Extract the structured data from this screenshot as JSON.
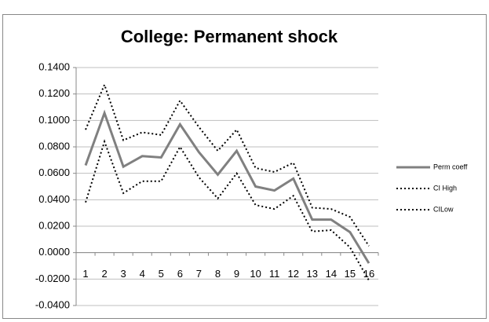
{
  "chart_data": {
    "type": "line",
    "title": "College: Permanent shock",
    "categories": [
      "1",
      "2",
      "3",
      "4",
      "5",
      "6",
      "7",
      "8",
      "9",
      "10",
      "11",
      "12",
      "13",
      "14",
      "15",
      "16"
    ],
    "series": [
      {
        "name": "Perm coeff",
        "color": "#808080",
        "style": "solid",
        "values": [
          0.066,
          0.1056,
          0.065,
          0.073,
          0.072,
          0.097,
          0.076,
          0.059,
          0.077,
          0.05,
          0.047,
          0.056,
          0.025,
          0.025,
          0.0155,
          -0.008
        ]
      },
      {
        "name": "CI High",
        "color": "#000000",
        "style": "dotted",
        "values": [
          0.093,
          0.127,
          0.085,
          0.091,
          0.089,
          0.115,
          0.095,
          0.077,
          0.093,
          0.064,
          0.061,
          0.068,
          0.034,
          0.033,
          0.027,
          0.005
        ]
      },
      {
        "name": "CILow",
        "color": "#000000",
        "style": "dotted",
        "values": [
          0.038,
          0.084,
          0.045,
          0.054,
          0.054,
          0.08,
          0.057,
          0.041,
          0.06,
          0.036,
          0.033,
          0.043,
          0.016,
          0.017,
          0.004,
          -0.021
        ]
      }
    ],
    "ylim": [
      -0.04,
      0.14
    ],
    "yticks": [
      {
        "value": -0.04,
        "label": "-0.0400"
      },
      {
        "value": -0.02,
        "label": "-0.0200"
      },
      {
        "value": 0,
        "label": "0.0000"
      },
      {
        "value": 0.02,
        "label": "0.0200"
      },
      {
        "value": 0.04,
        "label": "0.0400"
      },
      {
        "value": 0.06,
        "label": "0.0600"
      },
      {
        "value": 0.08,
        "label": "0.0800"
      },
      {
        "value": 0.1,
        "label": "0.1000"
      },
      {
        "value": 0.12,
        "label": "0.1200"
      },
      {
        "value": 0.14,
        "label": "0.1400"
      }
    ],
    "grid": true,
    "legend": "right"
  }
}
